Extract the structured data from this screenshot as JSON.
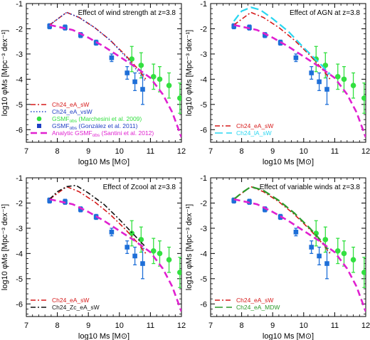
{
  "figure": {
    "xlabel": "log10 Ms [M⊙]",
    "ylabel": "log10 φMs [Mpc⁻³ dex⁻¹]",
    "xlim": [
      7,
      12
    ],
    "ylim": [
      -6.5,
      -1
    ],
    "xticks": [
      "7",
      "8",
      "9",
      "10",
      "11",
      "12"
    ],
    "yticks": [
      "-1",
      "-2",
      "-3",
      "-4",
      "-5",
      "-6"
    ]
  },
  "chart_data": [
    {
      "type": "line",
      "title": "Effect of wind strength at z=3.8",
      "series": [
        {
          "name": "Ch24_eA_sW",
          "color": "#d61a1a",
          "dash": "dashdot",
          "x": [
            7.75,
            8.0,
            8.3,
            8.7,
            9.2,
            9.7,
            10.2,
            10.6,
            10.85
          ],
          "y": [
            -1.85,
            -1.62,
            -1.35,
            -1.55,
            -1.95,
            -2.45,
            -3.05,
            -3.6,
            -4.0
          ]
        },
        {
          "name": "Ch24_eA_vsW",
          "color": "#1f3fc4",
          "dash": "dotted",
          "x": [
            7.75,
            8.0,
            8.3,
            8.7,
            9.2,
            9.7,
            10.2,
            10.6,
            10.85
          ],
          "y": [
            -1.85,
            -1.62,
            -1.35,
            -1.55,
            -1.95,
            -2.45,
            -3.1,
            -3.7,
            -4.1
          ]
        },
        {
          "name": "Analytic GSMF_obs (Santini et al. 2012)",
          "color": "#e020d0",
          "dash": "dashed",
          "x": [
            7.75,
            8.5,
            9.0,
            9.5,
            10.0,
            10.5,
            11.0,
            11.4,
            11.7,
            12.0
          ],
          "y": [
            -1.85,
            -2.05,
            -2.35,
            -2.7,
            -3.1,
            -3.5,
            -3.95,
            -4.6,
            -5.3,
            -6.3
          ]
        }
      ],
      "markers": [
        {
          "name": "GSMF_obs (Marchesini et al. 2009)",
          "color": "#33e040",
          "marker": "circle",
          "x": [
            10.4,
            10.7,
            11.1,
            11.3,
            11.6,
            11.95
          ],
          "y": [
            -3.2,
            -3.45,
            -3.9,
            -4.0,
            -4.25,
            -4.75
          ],
          "err": [
            0.5,
            0.5,
            0.5,
            0.5,
            0.5,
            0.6
          ]
        },
        {
          "name": "GSMF_obs (González et al. 2011)",
          "color": "#1e6fd8",
          "marker": "square",
          "x": [
            7.75,
            8.25,
            8.75,
            9.25,
            9.75,
            10.25,
            10.5,
            10.75
          ],
          "y": [
            -1.9,
            -1.95,
            -2.25,
            -2.55,
            -3.15,
            -3.75,
            -4.1,
            -4.4
          ],
          "err": [
            0.1,
            0.1,
            0.1,
            0.1,
            0.15,
            0.25,
            0.35,
            0.6
          ]
        }
      ]
    },
    {
      "type": "line",
      "title": "Effect of AGN at z=3.8",
      "series": [
        {
          "name": "Ch24_eA_sW",
          "color": "#d61a1a",
          "dash": "dashdot",
          "x": [
            7.75,
            8.0,
            8.3,
            8.7,
            9.2,
            9.7,
            10.2,
            10.6,
            10.85
          ],
          "y": [
            -1.85,
            -1.62,
            -1.35,
            -1.55,
            -1.95,
            -2.45,
            -3.05,
            -3.6,
            -4.0
          ]
        },
        {
          "name": "Ch24_lA_sW",
          "color": "#29d6f0",
          "dash": "longdash",
          "x": [
            7.75,
            8.0,
            8.3,
            8.6,
            9.0,
            9.5,
            10.0,
            10.5,
            10.85
          ],
          "y": [
            -1.7,
            -1.3,
            -1.15,
            -1.25,
            -1.6,
            -2.1,
            -2.75,
            -3.35,
            -3.8
          ]
        },
        {
          "name": "Analytic",
          "color": "#e020d0",
          "dash": "dashed",
          "x": [
            7.75,
            8.5,
            9.0,
            9.5,
            10.0,
            10.5,
            11.0,
            11.4,
            11.7,
            12.0
          ],
          "y": [
            -1.85,
            -2.05,
            -2.35,
            -2.7,
            -3.1,
            -3.5,
            -3.95,
            -4.6,
            -5.3,
            -6.3
          ]
        }
      ],
      "markers": [
        {
          "name": "Marchesini",
          "color": "#33e040",
          "marker": "circle",
          "x": [
            10.4,
            10.7,
            11.1,
            11.3,
            11.6,
            11.95
          ],
          "y": [
            -3.2,
            -3.45,
            -3.9,
            -4.0,
            -4.25,
            -4.75
          ],
          "err": [
            0.5,
            0.5,
            0.5,
            0.5,
            0.5,
            0.6
          ]
        },
        {
          "name": "Gonzalez",
          "color": "#1e6fd8",
          "marker": "square",
          "x": [
            7.75,
            8.25,
            8.75,
            9.25,
            9.75,
            10.25,
            10.5,
            10.75
          ],
          "y": [
            -1.9,
            -1.95,
            -2.25,
            -2.55,
            -3.15,
            -3.75,
            -4.1,
            -4.4
          ],
          "err": [
            0.1,
            0.1,
            0.1,
            0.1,
            0.15,
            0.25,
            0.35,
            0.6
          ]
        }
      ]
    },
    {
      "type": "line",
      "title": "Effect of Zcool at z=3.8",
      "series": [
        {
          "name": "Ch24_eA_sW",
          "color": "#d61a1a",
          "dash": "dashdot",
          "x": [
            7.75,
            8.0,
            8.3,
            8.7,
            9.2,
            9.7,
            10.2,
            10.6,
            10.85
          ],
          "y": [
            -1.85,
            -1.62,
            -1.35,
            -1.55,
            -1.95,
            -2.45,
            -3.05,
            -3.6,
            -4.0
          ]
        },
        {
          "name": "Ch24_Zc_eA_sW",
          "color": "#111111",
          "dash": "dashdot",
          "x": [
            7.75,
            8.0,
            8.3,
            8.6,
            9.0,
            9.5,
            10.0,
            10.5,
            10.85
          ],
          "y": [
            -1.85,
            -1.55,
            -1.35,
            -1.3,
            -1.6,
            -2.05,
            -2.65,
            -3.3,
            -3.75
          ]
        },
        {
          "name": "Analytic",
          "color": "#e020d0",
          "dash": "dashed",
          "x": [
            7.75,
            8.5,
            9.0,
            9.5,
            10.0,
            10.5,
            11.0,
            11.4,
            11.7,
            12.0
          ],
          "y": [
            -1.85,
            -2.05,
            -2.35,
            -2.7,
            -3.1,
            -3.5,
            -3.95,
            -4.6,
            -5.3,
            -6.3
          ]
        }
      ],
      "markers": [
        {
          "name": "Marchesini",
          "color": "#33e040",
          "marker": "circle",
          "x": [
            10.4,
            10.7,
            11.1,
            11.3,
            11.6,
            11.95
          ],
          "y": [
            -3.2,
            -3.45,
            -3.9,
            -4.0,
            -4.25,
            -4.75
          ],
          "err": [
            0.5,
            0.5,
            0.5,
            0.5,
            0.5,
            0.6
          ]
        },
        {
          "name": "Gonzalez",
          "color": "#1e6fd8",
          "marker": "square",
          "x": [
            7.75,
            8.25,
            8.75,
            9.25,
            9.75,
            10.25,
            10.5,
            10.75
          ],
          "y": [
            -1.9,
            -1.95,
            -2.25,
            -2.55,
            -3.15,
            -3.75,
            -4.1,
            -4.4
          ],
          "err": [
            0.1,
            0.1,
            0.1,
            0.1,
            0.15,
            0.25,
            0.35,
            0.6
          ]
        }
      ]
    },
    {
      "type": "line",
      "title": "Effect of variable winds at z=3.8",
      "series": [
        {
          "name": "Ch24_eA_sW",
          "color": "#d61a1a",
          "dash": "dashdot",
          "x": [
            7.75,
            8.0,
            8.3,
            8.7,
            9.2,
            9.7,
            10.2,
            10.6,
            10.85
          ],
          "y": [
            -1.85,
            -1.62,
            -1.35,
            -1.55,
            -1.95,
            -2.45,
            -3.05,
            -3.6,
            -4.0
          ]
        },
        {
          "name": "Ch24_eA_MDW",
          "color": "#2a9a2a",
          "dash": "longdash",
          "x": [
            7.75,
            8.0,
            8.3,
            8.7,
            9.2,
            9.7,
            10.2,
            10.6,
            10.85
          ],
          "y": [
            -1.85,
            -1.6,
            -1.35,
            -1.5,
            -1.9,
            -2.4,
            -3.0,
            -3.55,
            -3.95
          ]
        },
        {
          "name": "Analytic",
          "color": "#e020d0",
          "dash": "dashed",
          "x": [
            7.75,
            8.5,
            9.0,
            9.5,
            10.0,
            10.5,
            11.0,
            11.4,
            11.7,
            12.0
          ],
          "y": [
            -1.85,
            -2.05,
            -2.35,
            -2.7,
            -3.1,
            -3.5,
            -3.95,
            -4.6,
            -5.3,
            -6.3
          ]
        }
      ],
      "markers": [
        {
          "name": "Marchesini",
          "color": "#33e040",
          "marker": "circle",
          "x": [
            10.4,
            10.7,
            11.1,
            11.3,
            11.6,
            11.95
          ],
          "y": [
            -3.2,
            -3.45,
            -3.9,
            -4.0,
            -4.25,
            -4.75
          ],
          "err": [
            0.5,
            0.5,
            0.5,
            0.5,
            0.5,
            0.6
          ]
        },
        {
          "name": "Gonzalez",
          "color": "#1e6fd8",
          "marker": "square",
          "x": [
            7.75,
            8.25,
            8.75,
            9.25,
            9.75,
            10.25,
            10.5,
            10.75
          ],
          "y": [
            -1.9,
            -1.95,
            -2.25,
            -2.55,
            -3.15,
            -3.75,
            -4.1,
            -4.4
          ],
          "err": [
            0.1,
            0.1,
            0.1,
            0.1,
            0.15,
            0.25,
            0.35,
            0.6
          ]
        }
      ]
    }
  ],
  "legends": [
    [
      {
        "text": "Ch24_eA_sW",
        "color": "#d61a1a",
        "kind": "dashdot"
      },
      {
        "text": "Ch24_eA_vsW",
        "color": "#1f3fc4",
        "kind": "dotted"
      },
      {
        "text": "GSMF",
        "sub": "obs",
        "after": " (Marchesini et al. 2009)",
        "color": "#33e040",
        "kind": "circle"
      },
      {
        "text": "GSMF",
        "sub": "obs",
        "after": " (González et al. 2011)",
        "color": "#1f3fc4",
        "kind": "square"
      },
      {
        "text": "Analytic GSMF",
        "sub": "obs",
        "after": " (Santini et al. 2012)",
        "color": "#e020d0",
        "kind": "dashed"
      }
    ],
    [
      {
        "text": "Ch24_eA_sW",
        "color": "#d61a1a",
        "kind": "dashdot"
      },
      {
        "text": "Ch24_lA_sW",
        "color": "#29d6f0",
        "kind": "longdash"
      }
    ],
    [
      {
        "text": "Ch24_eA_sW",
        "color": "#d61a1a",
        "kind": "dashdot"
      },
      {
        "text": "Ch24_Zc_eA_sW",
        "color": "#111111",
        "kind": "dashdot"
      }
    ],
    [
      {
        "text": "Ch24_eA_sW",
        "color": "#d61a1a",
        "kind": "dashdot"
      },
      {
        "text": "Ch24_eA_MDW",
        "color": "#2a9a2a",
        "kind": "longdash"
      }
    ]
  ]
}
